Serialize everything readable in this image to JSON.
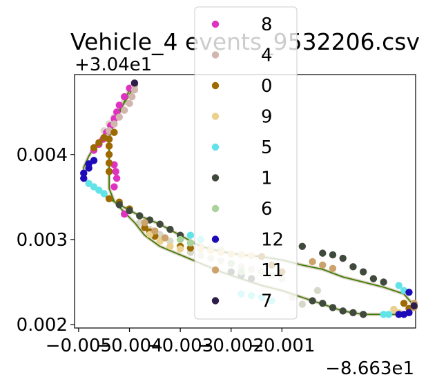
{
  "chart_data": {
    "type": "scatter",
    "title": "Vehicle_4 events_9532206.csv",
    "xlabel": "",
    "ylabel": "",
    "x_offset_label": "−8.663e1",
    "y_offset_label": "+3.04e1",
    "xlim": [
      -0.00508,
      0.00163
    ],
    "ylim": [
      0.00196,
      0.00494
    ],
    "x_ticks": [
      -0.005,
      -0.004,
      -0.003,
      -0.002,
      -0.001
    ],
    "x_tick_labels": [
      "−0.005",
      "−0.004",
      "−0.003",
      "−0.002",
      "−0.001"
    ],
    "y_ticks": [
      0.002,
      0.003,
      0.004
    ],
    "y_tick_labels": [
      "0.002",
      "0.003",
      "0.004"
    ],
    "legend_position": "upper center (overlapping plot)",
    "series": [
      {
        "name": "8",
        "color": "#e032c0",
        "points": [
          [
            -0.004,
            0.00478
          ],
          [
            -0.0041,
            0.00468
          ],
          [
            -0.0042,
            0.00458
          ],
          [
            -0.00425,
            0.0045
          ],
          [
            -0.0043,
            0.00442
          ],
          [
            -0.00437,
            0.00434
          ],
          [
            -0.00445,
            0.00426
          ],
          [
            -0.00452,
            0.00418
          ],
          [
            -0.0046,
            0.00412
          ],
          [
            -0.0047,
            0.00405
          ],
          [
            -0.0043,
            0.00388
          ],
          [
            -0.00427,
            0.0038
          ],
          [
            -0.00425,
            0.00372
          ],
          [
            -0.0043,
            0.00362
          ],
          [
            -0.0041,
            0.0033
          ]
        ]
      },
      {
        "name": "4",
        "color": "#d2b5ad",
        "points": [
          [
            -0.0039,
            0.00484
          ],
          [
            -0.0039,
            0.00476
          ],
          [
            -0.00395,
            0.00468
          ],
          [
            -0.004,
            0.0046
          ],
          [
            -0.0041,
            0.00452
          ],
          [
            -0.0042,
            0.00444
          ],
          [
            -0.0043,
            0.00436
          ],
          [
            -0.0044,
            0.00428
          ],
          [
            -0.00445,
            0.0042
          ],
          [
            -0.0039,
            0.00481
          ]
        ]
      },
      {
        "name": "0",
        "color": "#9c6a00",
        "points": [
          [
            -0.0045,
            0.0042
          ],
          [
            -0.0046,
            0.00414
          ],
          [
            -0.0047,
            0.00408
          ],
          [
            -0.0044,
            0.00418
          ],
          [
            -0.0044,
            0.0041
          ],
          [
            -0.0044,
            0.004
          ],
          [
            -0.0044,
            0.0039
          ],
          [
            -0.0044,
            0.00348
          ],
          [
            -0.0042,
            0.00344
          ],
          [
            -0.004,
            0.00336
          ],
          [
            -0.0037,
            0.00314
          ],
          [
            -0.0036,
            0.00309
          ],
          [
            -0.0035,
            0.00304
          ],
          [
            -0.003,
            0.00292
          ],
          [
            -0.0028,
            0.0029
          ],
          [
            -0.0014,
            0.0028
          ],
          [
            -0.0012,
            0.0027
          ],
          [
            -0.001,
            0.00262
          ],
          [
            0.0014,
            0.00225
          ],
          [
            0.0015,
            0.00219
          ],
          [
            -0.0044,
            0.0038
          ],
          [
            -0.0043,
            0.00426
          ]
        ]
      },
      {
        "name": "9",
        "color": "#ebd08e",
        "points": [
          [
            -0.0036,
            0.00306
          ],
          [
            -0.0034,
            0.00298
          ],
          [
            -0.0032,
            0.00292
          ],
          [
            -0.003,
            0.00289
          ],
          [
            -0.0026,
            0.00289
          ],
          [
            -0.0024,
            0.00287
          ],
          [
            -0.0022,
            0.00285
          ],
          [
            -0.002,
            0.00283
          ],
          [
            -0.0018,
            0.00282
          ],
          [
            -0.0016,
            0.00281
          ],
          [
            0.0012,
            0.00218
          ],
          [
            0.0013,
            0.00214
          ]
        ]
      },
      {
        "name": "5",
        "color": "#62e3e8",
        "points": [
          [
            -0.0048,
            0.00366
          ],
          [
            -0.0047,
            0.00362
          ],
          [
            -0.0046,
            0.00358
          ],
          [
            -0.0045,
            0.00354
          ],
          [
            -0.0018,
            0.00236
          ],
          [
            -0.0016,
            0.00234
          ],
          [
            -0.0014,
            0.00232
          ],
          [
            -0.0012,
            0.00228
          ],
          [
            0.001,
            0.00212
          ],
          [
            0.0011,
            0.00212
          ],
          [
            0.0013,
            0.00246
          ],
          [
            0.0014,
            0.0024
          ],
          [
            -0.0028,
            0.00305
          ],
          [
            -0.0026,
            0.003
          ]
        ]
      },
      {
        "name": "1",
        "color": "#404a3c",
        "points": [
          [
            -0.0042,
            0.00341
          ],
          [
            -0.004,
            0.00334
          ],
          [
            -0.0038,
            0.00328
          ],
          [
            -0.0036,
            0.00323
          ],
          [
            -0.0034,
            0.00318
          ],
          [
            -0.0032,
            0.00312
          ],
          [
            -0.003,
            0.00305
          ],
          [
            -0.002,
            0.00262
          ],
          [
            -0.0018,
            0.00258
          ],
          [
            -0.0016,
            0.00254
          ],
          [
            -0.0004,
            0.00228
          ],
          [
            -0.0002,
            0.00225
          ],
          [
            0.0,
            0.0022
          ],
          [
            0.0002,
            0.00216
          ],
          [
            0.0004,
            0.00214
          ],
          [
            0.0006,
            0.00212
          ],
          [
            0.0002,
            0.00278
          ],
          [
            0.0004,
            0.00268
          ],
          [
            0.0006,
            0.00262
          ],
          [
            0.0008,
            0.00254
          ],
          [
            0.001,
            0.0025
          ],
          [
            -0.0002,
            0.00284
          ],
          [
            -0.0006,
            0.00292
          ],
          [
            0.0,
            0.00282
          ]
        ]
      },
      {
        "name": "6",
        "color": "#a9d39b",
        "points": [
          [
            -0.002,
            0.00272
          ],
          [
            -0.0018,
            0.00262
          ],
          [
            -0.003,
            0.003
          ],
          [
            -0.0028,
            0.00296
          ]
        ]
      },
      {
        "name": "12",
        "color": "#1e0bb8",
        "points": [
          [
            -0.0047,
            0.00393
          ],
          [
            -0.0048,
            0.00389
          ],
          [
            -0.0048,
            0.00384
          ],
          [
            -0.0049,
            0.00378
          ],
          [
            -0.0049,
            0.00372
          ],
          [
            0.0013,
            0.00212
          ],
          [
            0.0014,
            0.00212
          ],
          [
            0.0015,
            0.00214
          ],
          [
            0.0015,
            0.00238
          ]
        ]
      },
      {
        "name": "11",
        "color": "#cca36a",
        "points": [
          [
            -0.0037,
            0.0032
          ],
          [
            -0.0035,
            0.0031
          ],
          [
            -0.0033,
            0.00302
          ],
          [
            -0.0004,
            0.00274
          ],
          [
            -0.0002,
            0.0027
          ],
          [
            0.0,
            0.00266
          ],
          [
            0.0016,
            0.00225
          ],
          [
            0.0016,
            0.0022
          ]
        ]
      },
      {
        "name": "7",
        "color": "#2c1d4a",
        "points": [
          [
            -0.0039,
            0.00484
          ],
          [
            0.0016,
            0.00222
          ]
        ]
      }
    ],
    "background_points_color": "#d8d8c8",
    "background_points": [
      [
        -0.004,
        0.00472
      ],
      [
        -0.0041,
        0.00462
      ],
      [
        -0.0043,
        0.00444
      ],
      [
        -0.0044,
        0.00436
      ],
      [
        -0.0045,
        0.00428
      ],
      [
        -0.0038,
        0.0032
      ],
      [
        -0.0036,
        0.00312
      ],
      [
        -0.0034,
        0.00306
      ],
      [
        -0.0032,
        0.00298
      ],
      [
        -0.003,
        0.0029
      ],
      [
        -0.0028,
        0.00285
      ],
      [
        -0.0026,
        0.00281
      ],
      [
        -0.0024,
        0.00278
      ],
      [
        -0.0022,
        0.00275
      ],
      [
        -0.002,
        0.00272
      ],
      [
        -0.0018,
        0.00268
      ],
      [
        -0.0016,
        0.00265
      ],
      [
        -0.0014,
        0.00262
      ],
      [
        -0.0012,
        0.00258
      ],
      [
        -0.001,
        0.00254
      ],
      [
        -0.003,
        0.003
      ],
      [
        -0.0028,
        0.00296
      ],
      [
        -0.0026,
        0.00292
      ],
      [
        -0.0024,
        0.0029
      ],
      [
        -0.0022,
        0.00288
      ],
      [
        -0.0006,
        0.00224
      ],
      [
        -0.0008,
        0.00232
      ],
      [
        -0.0003,
        0.0024
      ]
    ],
    "path_color": "#3d7f00",
    "path_dash_color": "#d2b5ad",
    "path": [
      [
        -0.0039,
        0.00484
      ],
      [
        -0.004,
        0.0047
      ],
      [
        -0.0042,
        0.00452
      ],
      [
        -0.0043,
        0.0044
      ],
      [
        -0.0045,
        0.00422
      ],
      [
        -0.0047,
        0.00408
      ],
      [
        -0.0048,
        0.00398
      ],
      [
        -0.0049,
        0.00385
      ],
      [
        -0.0049,
        0.00372
      ],
      [
        -0.0048,
        0.00366
      ],
      [
        -0.0046,
        0.00358
      ],
      [
        -0.0044,
        0.00348
      ],
      [
        -0.0042,
        0.00341
      ],
      [
        -0.0038,
        0.00328
      ],
      [
        -0.0034,
        0.00318
      ],
      [
        -0.003,
        0.00305
      ],
      [
        -0.0026,
        0.00292
      ],
      [
        -0.0022,
        0.00286
      ],
      [
        -0.0018,
        0.00282
      ],
      [
        -0.0014,
        0.0028
      ],
      [
        -0.001,
        0.00276
      ],
      [
        -0.0006,
        0.0027
      ],
      [
        -0.0002,
        0.00265
      ],
      [
        0.0002,
        0.00256
      ],
      [
        0.0006,
        0.0025
      ],
      [
        0.001,
        0.00244
      ],
      [
        0.0014,
        0.00236
      ],
      [
        0.0016,
        0.00222
      ],
      [
        0.0014,
        0.00212
      ],
      [
        0.001,
        0.00212
      ],
      [
        0.0006,
        0.00212
      ],
      [
        0.0002,
        0.00216
      ],
      [
        -0.0002,
        0.00224
      ],
      [
        -0.0006,
        0.00232
      ],
      [
        -0.001,
        0.0024
      ],
      [
        -0.0014,
        0.00246
      ],
      [
        -0.0018,
        0.00254
      ],
      [
        -0.0022,
        0.00262
      ],
      [
        -0.0026,
        0.00272
      ],
      [
        -0.003,
        0.00282
      ],
      [
        -0.0034,
        0.00292
      ],
      [
        -0.0037,
        0.00305
      ],
      [
        -0.0039,
        0.0032
      ],
      [
        -0.0041,
        0.00332
      ],
      [
        -0.0043,
        0.00345
      ],
      [
        -0.0044,
        0.0036
      ],
      [
        -0.0044,
        0.0038
      ],
      [
        -0.0044,
        0.004
      ],
      [
        -0.0044,
        0.0042
      ],
      [
        -0.0043,
        0.00436
      ],
      [
        -0.0042,
        0.00448
      ],
      [
        -0.0041,
        0.00462
      ],
      [
        -0.004,
        0.00476
      ],
      [
        -0.0039,
        0.00484
      ]
    ]
  }
}
